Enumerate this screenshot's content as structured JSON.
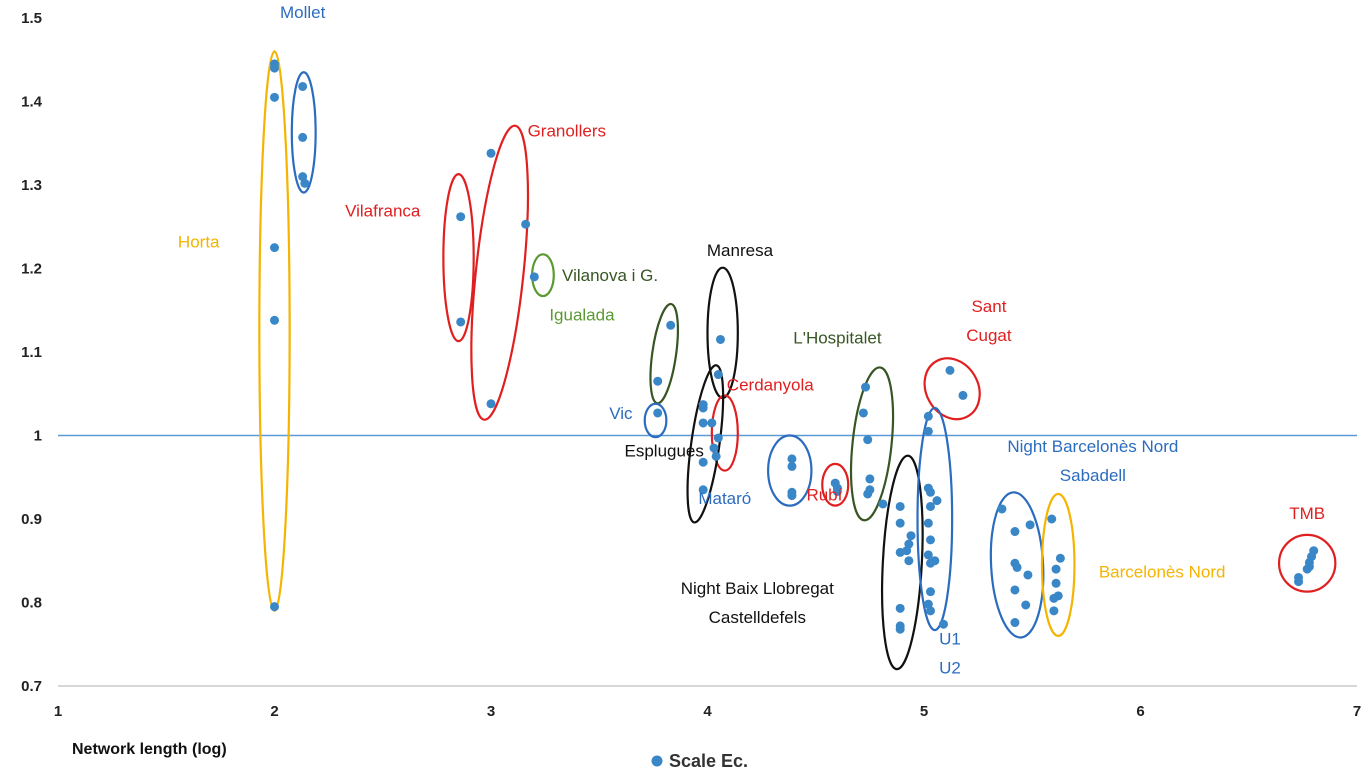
{
  "chart_data": {
    "type": "scatter",
    "xlabel": "Network length (log)",
    "ylabel": "",
    "xlim": [
      1,
      7
    ],
    "ylim": [
      0.7,
      1.5
    ],
    "x_ticks": [
      "1",
      "2",
      "3",
      "4",
      "5",
      "6",
      "7"
    ],
    "y_ticks": [
      "0.7",
      "0.8",
      "0.9",
      "1",
      "1.1",
      "1.2",
      "1.3",
      "1.4",
      "1.5"
    ],
    "grid": false,
    "reference_line_y": 1,
    "legend": {
      "position": "bottom",
      "entries": [
        "Scale Ec."
      ]
    },
    "series": [
      {
        "name": "Scale Ec.",
        "color": "#3a87c8",
        "points": [
          [
            2.0,
            1.445
          ],
          [
            2.0,
            1.44
          ],
          [
            2.0,
            1.405
          ],
          [
            2.0,
            1.225
          ],
          [
            2.0,
            1.138
          ],
          [
            2.0,
            0.795
          ],
          [
            2.13,
            1.418
          ],
          [
            2.13,
            1.357
          ],
          [
            2.13,
            1.31
          ],
          [
            2.14,
            1.302
          ],
          [
            2.86,
            1.262
          ],
          [
            2.86,
            1.136
          ],
          [
            3.0,
            1.338
          ],
          [
            3.0,
            1.038
          ],
          [
            3.16,
            1.253
          ],
          [
            3.2,
            1.19
          ],
          [
            3.77,
            1.065
          ],
          [
            3.83,
            1.132
          ],
          [
            3.77,
            1.027
          ],
          [
            4.06,
            1.115
          ],
          [
            4.05,
            1.073
          ],
          [
            3.98,
            1.037
          ],
          [
            3.98,
            1.033
          ],
          [
            3.98,
            1.015
          ],
          [
            4.02,
            1.015
          ],
          [
            4.03,
            0.985
          ],
          [
            4.04,
            0.975
          ],
          [
            4.05,
            0.997
          ],
          [
            3.98,
            0.968
          ],
          [
            3.98,
            0.935
          ],
          [
            4.39,
            0.972
          ],
          [
            4.39,
            0.963
          ],
          [
            4.39,
            0.932
          ],
          [
            4.39,
            0.928
          ],
          [
            4.59,
            0.943
          ],
          [
            4.6,
            0.937
          ],
          [
            4.6,
            0.933
          ],
          [
            4.73,
            1.058
          ],
          [
            4.72,
            1.027
          ],
          [
            4.74,
            0.995
          ],
          [
            4.75,
            0.948
          ],
          [
            4.75,
            0.935
          ],
          [
            4.74,
            0.93
          ],
          [
            4.81,
            0.918
          ],
          [
            4.89,
            0.915
          ],
          [
            4.89,
            0.895
          ],
          [
            4.94,
            0.88
          ],
          [
            4.93,
            0.87
          ],
          [
            4.92,
            0.862
          ],
          [
            4.89,
            0.86
          ],
          [
            4.93,
            0.85
          ],
          [
            4.89,
            0.793
          ],
          [
            4.89,
            0.772
          ],
          [
            4.89,
            0.768
          ],
          [
            5.02,
            1.023
          ],
          [
            5.02,
            1.005
          ],
          [
            5.02,
            0.937
          ],
          [
            5.03,
            0.932
          ],
          [
            5.06,
            0.922
          ],
          [
            5.03,
            0.915
          ],
          [
            5.02,
            0.895
          ],
          [
            5.03,
            0.875
          ],
          [
            5.02,
            0.857
          ],
          [
            5.05,
            0.85
          ],
          [
            5.03,
            0.847
          ],
          [
            5.03,
            0.813
          ],
          [
            5.02,
            0.798
          ],
          [
            5.03,
            0.79
          ],
          [
            5.09,
            0.774
          ],
          [
            5.12,
            1.078
          ],
          [
            5.18,
            1.048
          ],
          [
            5.36,
            0.912
          ],
          [
            5.42,
            0.885
          ],
          [
            5.49,
            0.893
          ],
          [
            5.42,
            0.847
          ],
          [
            5.43,
            0.842
          ],
          [
            5.48,
            0.833
          ],
          [
            5.42,
            0.815
          ],
          [
            5.47,
            0.797
          ],
          [
            5.42,
            0.776
          ],
          [
            5.59,
            0.9
          ],
          [
            5.63,
            0.853
          ],
          [
            5.61,
            0.84
          ],
          [
            5.61,
            0.823
          ],
          [
            5.62,
            0.808
          ],
          [
            5.6,
            0.805
          ],
          [
            5.6,
            0.79
          ],
          [
            6.73,
            0.83
          ],
          [
            6.73,
            0.825
          ],
          [
            6.77,
            0.84
          ],
          [
            6.78,
            0.848
          ],
          [
            6.79,
            0.855
          ],
          [
            6.8,
            0.862
          ],
          [
            6.78,
            0.843
          ]
        ]
      }
    ],
    "groups": [
      {
        "label": [
          "Horta"
        ],
        "color": "#f4b400",
        "ellipse": {
          "cx": 2.0,
          "cy": 1.125,
          "rx": 0.07,
          "ry": 0.335,
          "rot": 0
        },
        "label_pos": [
          1.65,
          1.225
        ]
      },
      {
        "label": [
          "Mollet"
        ],
        "color": "#2b6cbf",
        "ellipse": {
          "cx": 2.135,
          "cy": 1.363,
          "rx": 0.055,
          "ry": 0.072,
          "rot": 0
        },
        "label_pos": [
          2.13,
          1.5
        ]
      },
      {
        "label": [
          "Vilafranca"
        ],
        "color": "#e02020",
        "ellipse": {
          "cx": 2.85,
          "cy": 1.213,
          "rx": 0.07,
          "ry": 0.1,
          "rot": 0
        },
        "label_pos": [
          2.5,
          1.262
        ]
      },
      {
        "label": [
          "Granollers"
        ],
        "color": "#e02020",
        "ellipse": {
          "cx": 3.04,
          "cy": 1.195,
          "rx": 0.11,
          "ry": 0.177,
          "rot": 6
        },
        "label_pos": [
          3.35,
          1.358
        ]
      },
      {
        "label": [
          "Igualada"
        ],
        "color": "#5b9a32",
        "ellipse": {
          "cx": 3.24,
          "cy": 1.192,
          "rx": 0.05,
          "ry": 0.025,
          "rot": 0
        },
        "label_pos": [
          3.42,
          1.138
        ]
      },
      {
        "label": [
          "Vilanova i G."
        ],
        "color": "#375623",
        "ellipse": {
          "cx": 3.8,
          "cy": 1.098,
          "rx": 0.055,
          "ry": 0.06,
          "rot": 8
        },
        "label_pos": [
          3.55,
          1.185
        ]
      },
      {
        "label": [
          "Manresa"
        ],
        "color": "#111111",
        "ellipse": {
          "cx": 4.07,
          "cy": 1.123,
          "rx": 0.07,
          "ry": 0.078,
          "rot": 0
        },
        "label_pos": [
          4.15,
          1.215
        ]
      },
      {
        "label": [
          "Vic"
        ],
        "color": "#2b6cbf",
        "ellipse": {
          "cx": 3.76,
          "cy": 1.018,
          "rx": 0.05,
          "ry": 0.02,
          "rot": 0
        },
        "label_pos": [
          3.6,
          1.02
        ]
      },
      {
        "label": [
          "Cerdanyola"
        ],
        "color": "#e02020",
        "ellipse": {
          "cx": 4.08,
          "cy": 1.003,
          "rx": 0.06,
          "ry": 0.045,
          "rot": 0
        },
        "label_pos": [
          4.29,
          1.054
        ]
      },
      {
        "label": [
          "Esplugues"
        ],
        "color": "#111111",
        "ellipse": {
          "cx": 3.99,
          "cy": 0.99,
          "rx": 0.065,
          "ry": 0.095,
          "rot": 8
        },
        "label_pos": [
          3.8,
          0.975
        ]
      },
      {
        "label": [
          "Mataró"
        ],
        "color": "#2b6cbf",
        "ellipse": {
          "cx": 4.38,
          "cy": 0.958,
          "rx": 0.1,
          "ry": 0.042,
          "rot": 0
        },
        "label_pos": [
          4.08,
          0.918
        ]
      },
      {
        "label": [
          "Rubí"
        ],
        "color": "#e02020",
        "ellipse": {
          "cx": 4.59,
          "cy": 0.941,
          "rx": 0.06,
          "ry": 0.025,
          "rot": 0
        },
        "label_pos": [
          4.54,
          0.922
        ]
      },
      {
        "label": [
          "L'Hospitalet"
        ],
        "color": "#375623",
        "ellipse": {
          "cx": 4.76,
          "cy": 0.99,
          "rx": 0.09,
          "ry": 0.092,
          "rot": 6
        },
        "label_pos": [
          4.6,
          1.11
        ]
      },
      {
        "label": [
          "Sant",
          "Cugat"
        ],
        "color": "#e02020",
        "ellipse": {
          "cx": 5.13,
          "cy": 1.056,
          "rx": 0.12,
          "ry": 0.038,
          "rot": -30
        },
        "label_pos": [
          5.3,
          1.148
        ]
      },
      {
        "label": [
          "Night Baix Llobregat",
          "Castelldefels"
        ],
        "color": "#111111",
        "ellipse": {
          "cx": 4.9,
          "cy": 0.848,
          "rx": 0.09,
          "ry": 0.128,
          "rot": 3
        },
        "label_pos": [
          4.23,
          0.81
        ]
      },
      {
        "label": [
          "U1",
          "U2"
        ],
        "color": "#2b6cbf",
        "ellipse": {
          "cx": 5.05,
          "cy": 0.9,
          "rx": 0.08,
          "ry": 0.133,
          "rot": 0
        },
        "label_pos": [
          5.12,
          0.75
        ]
      },
      {
        "label": [
          "Night Barcelonès Nord",
          "Sabadell"
        ],
        "color": "#2b6cbf",
        "ellipse": {
          "cx": 5.43,
          "cy": 0.845,
          "rx": 0.12,
          "ry": 0.087,
          "rot": -3
        },
        "label_pos": [
          5.78,
          0.98
        ]
      },
      {
        "label": [
          "Barcelonès Nord"
        ],
        "color": "#f4b400",
        "ellipse": {
          "cx": 5.62,
          "cy": 0.845,
          "rx": 0.075,
          "ry": 0.085,
          "rot": 0
        },
        "label_pos": [
          6.1,
          0.83
        ]
      },
      {
        "label": [
          "TMB"
        ],
        "color": "#e02020",
        "ellipse": {
          "cx": 6.77,
          "cy": 0.847,
          "rx": 0.13,
          "ry": 0.034,
          "rot": 0
        },
        "label_pos": [
          6.77,
          0.9
        ]
      }
    ]
  }
}
